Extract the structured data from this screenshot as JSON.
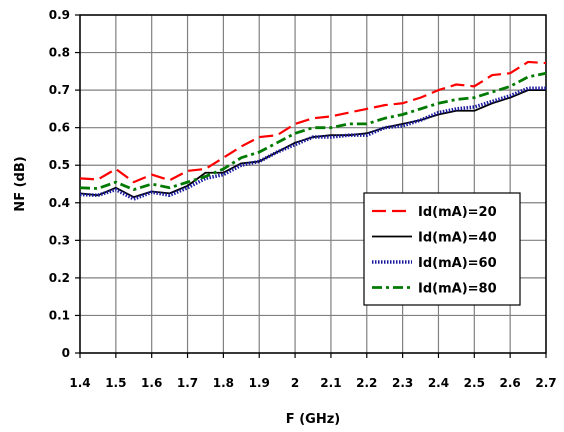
{
  "chart_data": {
    "type": "line",
    "title": "",
    "xlabel": "F (GHz)",
    "ylabel": "NF (dB)",
    "xlim": [
      1.4,
      2.7
    ],
    "ylim": [
      0,
      0.9
    ],
    "x_ticks": [
      "1.4",
      "1.5",
      "1.6",
      "1.7",
      "1.8",
      "1.9",
      "2",
      "2.1",
      "2.2",
      "2.3",
      "2.4",
      "2.5",
      "2.6",
      "2.7"
    ],
    "y_ticks": [
      "0",
      "0.1",
      "0.2",
      "0.3",
      "0.4",
      "0.5",
      "0.6",
      "0.7",
      "0.8",
      "0.9"
    ],
    "grid": true,
    "legend_position": "right-middle",
    "x": [
      1.4,
      1.45,
      1.5,
      1.55,
      1.6,
      1.65,
      1.7,
      1.75,
      1.8,
      1.85,
      1.9,
      1.95,
      2.0,
      2.05,
      2.1,
      2.15,
      2.2,
      2.25,
      2.3,
      2.35,
      2.4,
      2.45,
      2.5,
      2.55,
      2.6,
      2.65,
      2.7
    ],
    "series": [
      {
        "name": "Id(mA)=20",
        "color": "#ff0000",
        "dash": "dashed",
        "values": [
          0.465,
          0.462,
          0.49,
          0.455,
          0.475,
          0.46,
          0.485,
          0.49,
          0.52,
          0.55,
          0.575,
          0.58,
          0.61,
          0.625,
          0.63,
          0.64,
          0.65,
          0.66,
          0.665,
          0.68,
          0.7,
          0.715,
          0.71,
          0.74,
          0.745,
          0.775,
          0.772
        ]
      },
      {
        "name": "Id(mA)=40",
        "color": "#000000",
        "dash": "solid",
        "values": [
          0.425,
          0.42,
          0.44,
          0.415,
          0.43,
          0.425,
          0.445,
          0.48,
          0.48,
          0.505,
          0.51,
          0.535,
          0.56,
          0.575,
          0.58,
          0.58,
          0.585,
          0.6,
          0.61,
          0.62,
          0.635,
          0.645,
          0.645,
          0.665,
          0.68,
          0.7,
          0.7
        ]
      },
      {
        "name": "Id(mA)=60",
        "color": "#1a1aa0",
        "dash": "dotted",
        "values": [
          0.422,
          0.42,
          0.435,
          0.41,
          0.428,
          0.42,
          0.44,
          0.465,
          0.475,
          0.5,
          0.51,
          0.535,
          0.555,
          0.575,
          0.575,
          0.58,
          0.58,
          0.6,
          0.605,
          0.62,
          0.64,
          0.65,
          0.655,
          0.67,
          0.685,
          0.705,
          0.705
        ]
      },
      {
        "name": "Id(mA)=80",
        "color": "#007a00",
        "dash": "dashdot",
        "values": [
          0.44,
          0.438,
          0.455,
          0.435,
          0.45,
          0.44,
          0.455,
          0.47,
          0.49,
          0.52,
          0.535,
          0.56,
          0.585,
          0.6,
          0.6,
          0.61,
          0.61,
          0.625,
          0.635,
          0.65,
          0.665,
          0.675,
          0.68,
          0.695,
          0.71,
          0.735,
          0.745
        ]
      }
    ]
  }
}
